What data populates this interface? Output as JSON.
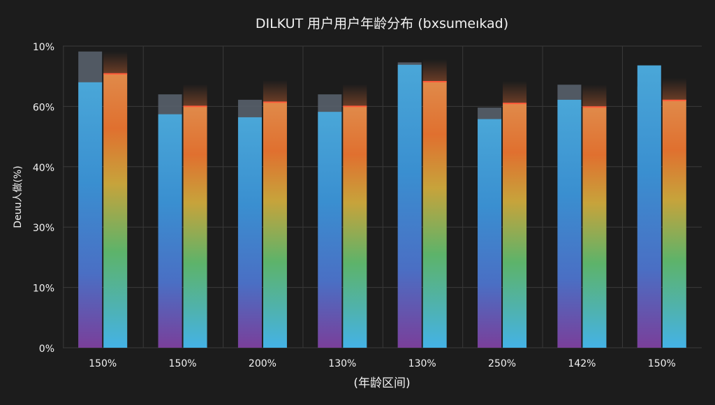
{
  "chart_data": {
    "type": "bar",
    "title": "DILKUT 用户用户年龄分布 (bxsumeıkad)",
    "xlabel": "(年龄区间)",
    "ylabel": "Deuu人做(%)",
    "y_tick_labels": [
      "0%",
      "10%",
      "30%",
      "40%",
      "60%",
      "10%"
    ],
    "y_tick_positions": [
      0,
      1,
      2,
      3,
      4,
      5
    ],
    "ylim": [
      0,
      5
    ],
    "grid": true,
    "categories": [
      "150%",
      "150%",
      "200%",
      "130%",
      "130%",
      "250%",
      "142%",
      "150%"
    ],
    "series": [
      {
        "values": [
          4.4,
          3.87,
          3.82,
          3.91,
          4.69,
          3.79,
          4.11,
          4.68
        ]
      },
      {
        "values": [
          4.54,
          4.0,
          4.07,
          4.0,
          4.41,
          4.05,
          3.99,
          4.1
        ]
      }
    ],
    "series_overlay_top": [
      4.91,
      4.2,
      4.11,
      4.2,
      4.73,
      3.98,
      4.36,
      4.33
    ],
    "colors": {
      "background": "#1c1c1c",
      "grid": "#3a3a3a",
      "series1_gradient": [
        "#7a3f9a",
        "#4a6fc4",
        "#3a8fd0",
        "#4aa7d8"
      ],
      "series2_gradient": [
        "#44b2e6",
        "#5db36a",
        "#c7a33b",
        "#e0702f",
        "#e6773a"
      ],
      "overlay": "#5a6470",
      "top_line": "#ff5a3a"
    }
  }
}
